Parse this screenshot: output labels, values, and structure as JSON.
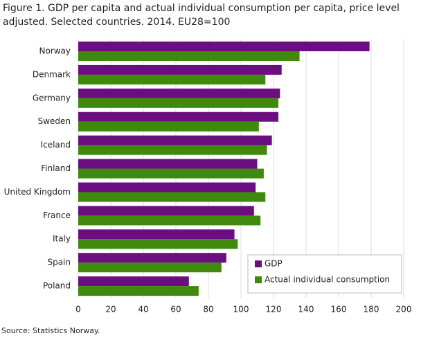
{
  "chart_data": {
    "type": "hbar",
    "title": "Figure 1. GDP per capita and actual individual consumption per capita, price level adjusted. Selected countries. 2014. EU28=100",
    "source": "Source: Statistics Norway.",
    "categories": [
      "Norway",
      "Denmark",
      "Germany",
      "Sweden",
      "Iceland",
      "Finland",
      "United Kingdom",
      "France",
      "Italy",
      "Spain",
      "Poland"
    ],
    "series": [
      {
        "name": "GDP",
        "color": "#6a0e80",
        "values": [
          179,
          125,
          124,
          123,
          119,
          110,
          109,
          108,
          96,
          91,
          68
        ]
      },
      {
        "name": "Actual individual consumption",
        "color": "#3f8a0c",
        "values": [
          136,
          115,
          123,
          111,
          116,
          114,
          115,
          112,
          98,
          88,
          74
        ]
      }
    ],
    "xlim": [
      0,
      200
    ],
    "xticks": [
      0,
      20,
      40,
      60,
      80,
      100,
      120,
      140,
      160,
      180,
      200
    ],
    "grid": true,
    "legend": "bottom-right"
  }
}
